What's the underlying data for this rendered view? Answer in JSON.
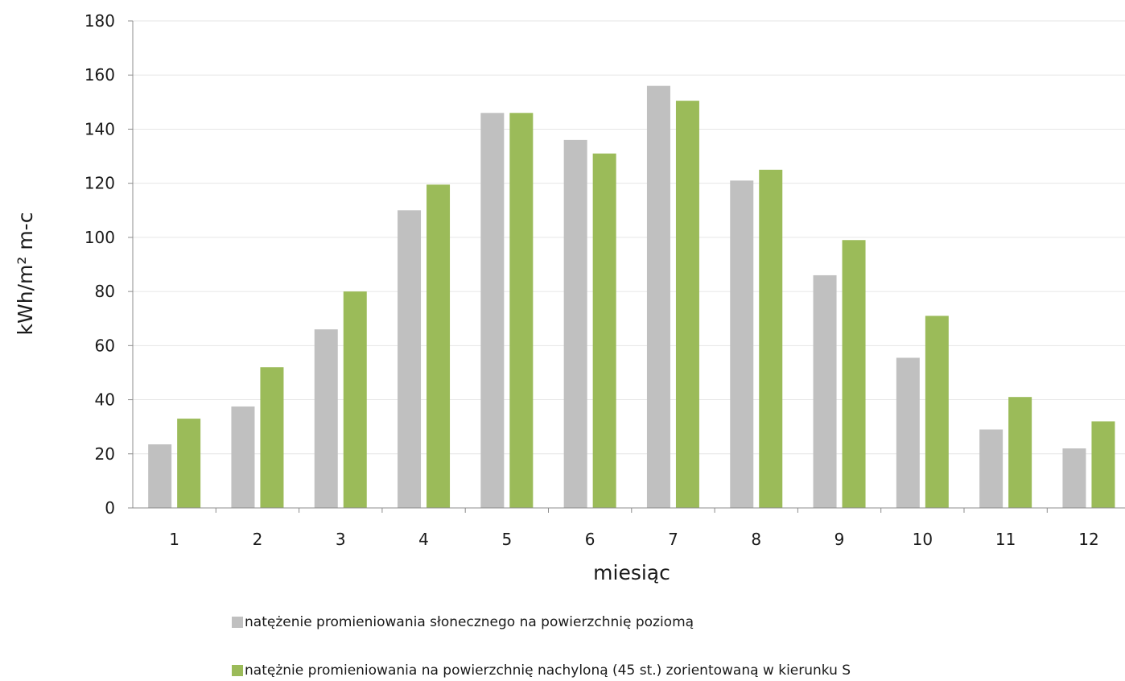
{
  "chart_data": {
    "type": "bar",
    "categories": [
      "1",
      "2",
      "3",
      "4",
      "5",
      "6",
      "7",
      "8",
      "9",
      "10",
      "11",
      "12"
    ],
    "series": [
      {
        "name": "natężenie promieniowania słonecznego na powierzchnię poziomą",
        "color": "#c0c0c0",
        "values": [
          23.5,
          37.5,
          66,
          110,
          146,
          136,
          156,
          121,
          86,
          55.5,
          29,
          22
        ]
      },
      {
        "name": "natężnie promieniowania na powierzchnię nachyloną (45 st.) zorientowaną w kierunku S",
        "color": "#9bbb59",
        "values": [
          33,
          52,
          80,
          119.5,
          146,
          131,
          150.5,
          125,
          99,
          71,
          41,
          32
        ]
      }
    ],
    "xlabel": "miesiąc",
    "ylabel": "kWh/m² m-c",
    "ylim": [
      0,
      180
    ],
    "yticks": [
      "0",
      "20",
      "40",
      "60",
      "80",
      "100",
      "120",
      "140",
      "160",
      "180"
    ],
    "grid": true,
    "legend_position": "bottom"
  }
}
